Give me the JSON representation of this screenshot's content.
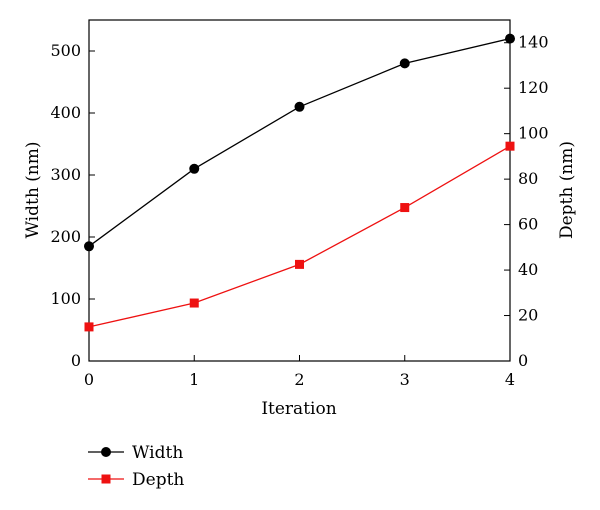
{
  "chart_data": {
    "type": "line",
    "x": [
      0,
      1,
      2,
      3,
      4
    ],
    "xlabel": "Iteration",
    "xlim": [
      0,
      4
    ],
    "xticks": [
      0,
      1,
      2,
      3,
      4
    ],
    "series": [
      {
        "name": "Width",
        "axis": "left",
        "color": "#000000",
        "marker": "circle",
        "values": [
          185,
          310,
          410,
          480,
          520
        ]
      },
      {
        "name": "Depth",
        "axis": "right",
        "color": "#ee1111",
        "marker": "square",
        "values": [
          15,
          25.5,
          42.5,
          67.5,
          94.5
        ]
      }
    ],
    "ylabel": "Width (nm)",
    "ylim": [
      0,
      550
    ],
    "yticks": [
      0,
      100,
      200,
      300,
      400,
      500
    ],
    "y2label": "Depth (nm)",
    "y2lim": [
      0,
      150
    ],
    "y2ticks": [
      0,
      20,
      40,
      60,
      80,
      100,
      120,
      140
    ],
    "grid": false,
    "legend": "bottom-left"
  }
}
